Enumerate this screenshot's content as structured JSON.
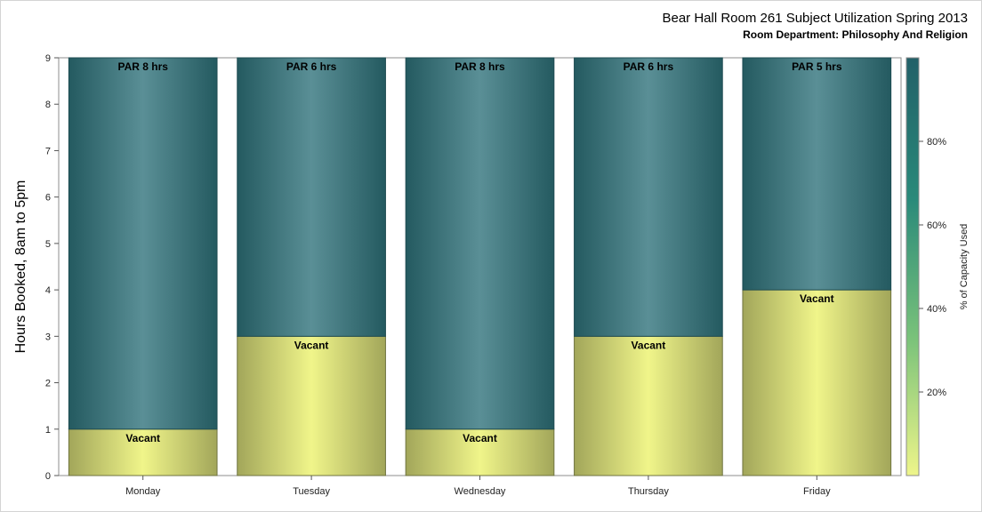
{
  "chart_data": {
    "type": "bar",
    "title": "Bear Hall Room 261 Subject Utilization Spring 2013",
    "subtitle": "Room Department:  Philosophy And Religion",
    "xlabel": "",
    "ylabel": "Hours Booked, 8am to 5pm",
    "ylim": [
      0,
      9
    ],
    "yticks": [
      0,
      1,
      2,
      3,
      4,
      5,
      6,
      7,
      8,
      9
    ],
    "categories": [
      "Monday",
      "Tuesday",
      "Wednesday",
      "Thursday",
      "Friday"
    ],
    "series": [
      {
        "name": "Vacant",
        "values": [
          1,
          3,
          1,
          3,
          4
        ]
      },
      {
        "name": "PAR",
        "values": [
          8,
          6,
          8,
          6,
          5
        ]
      }
    ],
    "bar_labels": [
      "PAR 8 hrs",
      "PAR 6 hrs",
      "PAR 8 hrs",
      "PAR 6 hrs",
      "PAR 5 hrs"
    ],
    "segment_label": "Vacant",
    "colors": {
      "booked_dark": "#245a60",
      "booked_light": "#5a8f96",
      "vacant_dark": "#a2a65a",
      "vacant_light": "#f0f58a"
    },
    "colorbar": {
      "label": "% of Capacity Used",
      "ticks": [
        "20%",
        "40%",
        "60%",
        "80%"
      ],
      "tick_values": [
        20,
        40,
        60,
        80
      ],
      "range": [
        0,
        100
      ],
      "colors": [
        "#eef58a",
        "#79c27a",
        "#2a8a7a",
        "#226068"
      ]
    },
    "grid": false,
    "legend": "colorbar right"
  }
}
